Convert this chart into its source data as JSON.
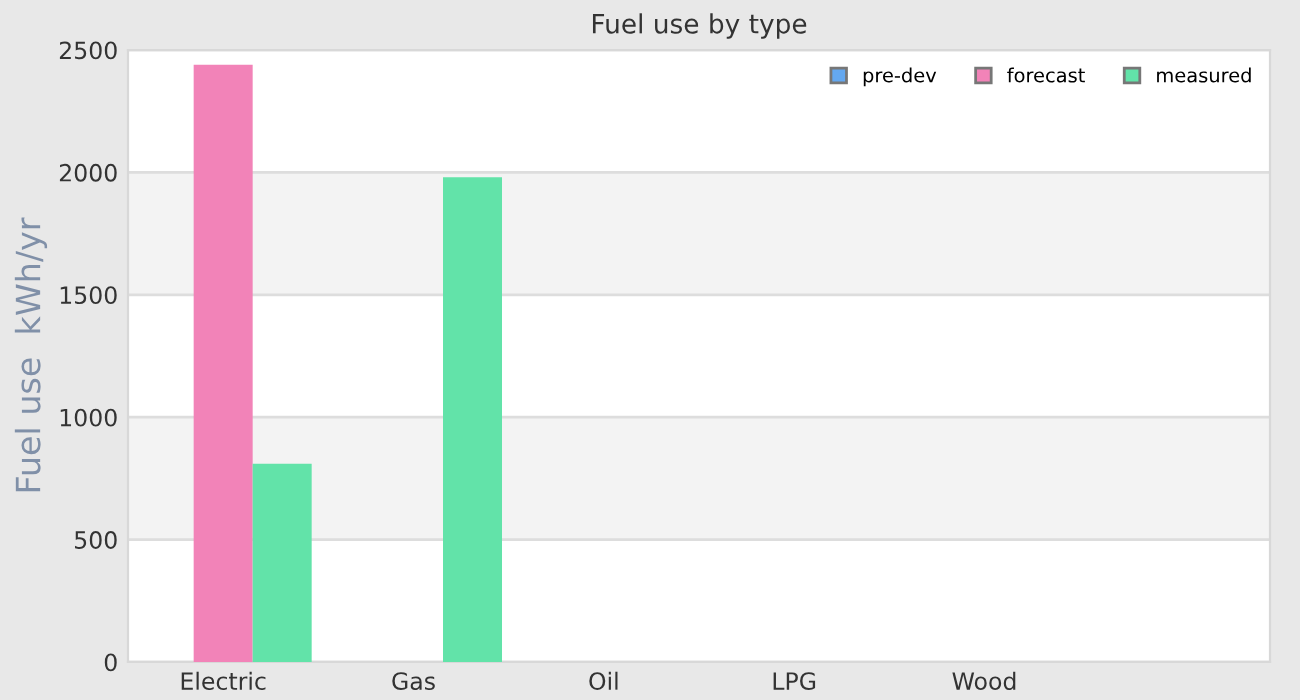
{
  "chart_data": {
    "type": "bar",
    "title": "Fuel use by type",
    "ylabel": "Fuel use  kWh/yr",
    "categories": [
      "Electric",
      "Gas",
      "Oil",
      "LPG",
      "Wood",
      null
    ],
    "series": [
      {
        "name": "pre-dev",
        "color": "#64a8f0",
        "values": [
          null,
          null,
          null,
          null,
          null,
          null
        ]
      },
      {
        "name": "forecast",
        "color": "#f283b8",
        "values": [
          2440,
          null,
          null,
          null,
          null,
          null
        ]
      },
      {
        "name": "measured",
        "color": "#62e3a9",
        "values": [
          810,
          1980,
          null,
          null,
          null,
          null
        ]
      }
    ],
    "ylim": [
      0,
      2500
    ],
    "yticks": [
      0,
      500,
      1000,
      1500,
      2000,
      2500
    ],
    "grid": "y",
    "legend": "top right"
  }
}
